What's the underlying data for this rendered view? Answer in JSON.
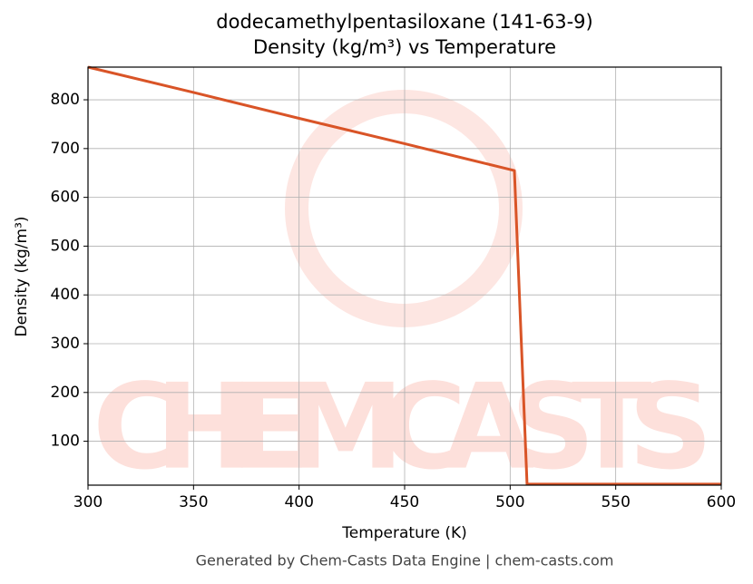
{
  "chart_data": {
    "type": "line",
    "title": "dodecamethylpentasiloxane (141-63-9)",
    "subtitle": "Density (kg/m³) vs Temperature",
    "x_label": "Temperature (K)",
    "y_label": "Density (kg/m³)",
    "footer": "Generated by Chem-Casts Data Engine | chem-casts.com",
    "watermark": "CHEMCASTS",
    "x": [
      300,
      350,
      400,
      450,
      500,
      502,
      508,
      550,
      600
    ],
    "series": [
      {
        "name": "Density",
        "color": "#d95427",
        "values": [
          867,
          815,
          762,
          710,
          657,
          655,
          12,
          12,
          12
        ]
      }
    ],
    "xlim": [
      300,
      600
    ],
    "ylim": [
      10,
      867
    ],
    "xticks": [
      300,
      350,
      400,
      450,
      500,
      550,
      600
    ],
    "yticks": [
      100,
      200,
      300,
      400,
      500,
      600,
      700,
      800
    ],
    "grid": true
  }
}
